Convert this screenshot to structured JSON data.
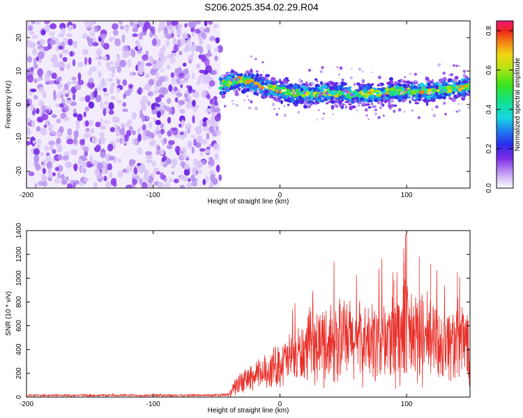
{
  "title": "S206.2025.354.02.29.R04",
  "chart_data": [
    {
      "type": "heatmap",
      "title": "S206.2025.354.02.29.R04",
      "xlabel": "Height of straight line (km)",
      "ylabel": "Frequency (Hz)",
      "xlim": [
        -200,
        150
      ],
      "ylim": [
        -25,
        25
      ],
      "xticks": [
        -200,
        -100,
        0,
        100
      ],
      "yticks": [
        -20,
        -10,
        0,
        10,
        20
      ],
      "noise_region_x": [
        -200,
        -47
      ],
      "signal_track": {
        "x": [
          -47,
          -40,
          -30,
          -20,
          -10,
          0,
          10,
          20,
          30,
          40,
          50,
          60,
          70,
          80,
          90,
          100,
          110,
          120,
          130,
          140,
          150
        ],
        "freq": [
          5.5,
          6.5,
          7.5,
          6.5,
          5,
          4.5,
          3.5,
          3,
          3.2,
          3.5,
          3.2,
          3,
          3.2,
          3.5,
          4,
          4,
          3.8,
          4,
          4.5,
          5,
          5.5
        ]
      },
      "colorbar": {
        "label": "Normalized spectral amplitude",
        "range": [
          0,
          0.85
        ],
        "ticks": [
          "0.0",
          "0.2",
          "0.4",
          "0.6",
          "0.8"
        ]
      }
    },
    {
      "type": "line",
      "xlabel": "Height of straight line (km)",
      "ylabel": "SNR (10 * v/v)",
      "xlim": [
        -200,
        150
      ],
      "ylim": [
        0,
        1400
      ],
      "xticks": [
        -200,
        -100,
        0,
        100
      ],
      "yticks": [
        0,
        200,
        400,
        600,
        800,
        1000,
        1200,
        1400
      ],
      "color": "#e8302a",
      "envelope": {
        "x": [
          -200,
          -50,
          -40,
          -35,
          -30,
          -20,
          -10,
          0,
          10,
          20,
          30,
          40,
          50,
          60,
          70,
          80,
          90,
          100,
          110,
          120,
          130,
          140,
          150
        ],
        "mean": [
          15,
          15,
          20,
          90,
          130,
          170,
          220,
          280,
          330,
          380,
          430,
          470,
          480,
          470,
          450,
          470,
          500,
          520,
          500,
          480,
          460,
          470,
          480
        ],
        "spread": [
          10,
          10,
          20,
          80,
          100,
          130,
          160,
          200,
          240,
          280,
          330,
          380,
          380,
          360,
          340,
          380,
          450,
          480,
          420,
          380,
          340,
          360,
          380
        ]
      }
    }
  ]
}
